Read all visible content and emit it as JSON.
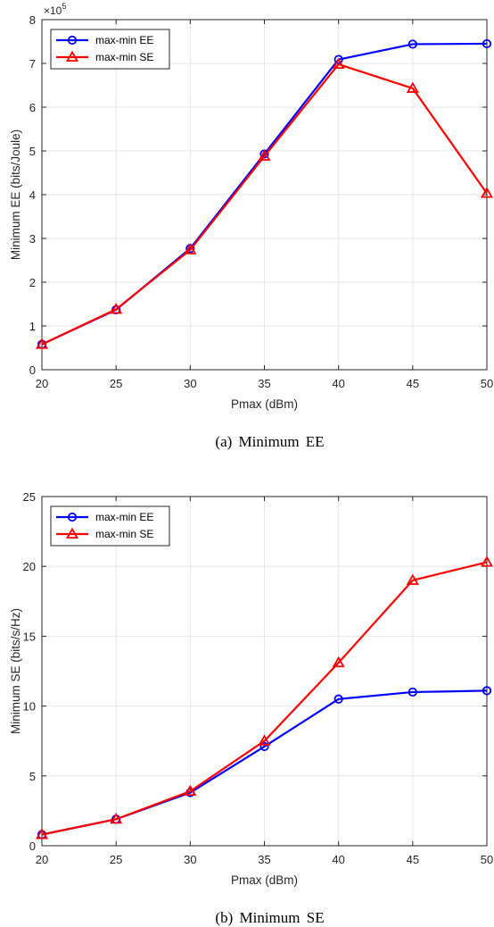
{
  "chart_data": [
    {
      "type": "line",
      "caption": "(a) Minimum EE",
      "xlabel": "Pmax (dBm)",
      "ylabel": "Minimum EE (bits/Joule)",
      "y_multiplier": {
        "base": "×10",
        "exp": "5"
      },
      "x": [
        20,
        25,
        30,
        35,
        40,
        45,
        50
      ],
      "xlim": [
        20,
        50
      ],
      "ylim": [
        0,
        8
      ],
      "xticks": [
        "20",
        "25",
        "30",
        "35",
        "40",
        "45",
        "50"
      ],
      "yticks": [
        "0",
        "1",
        "2",
        "3",
        "4",
        "5",
        "6",
        "7",
        "8"
      ],
      "grid": true,
      "legend_position": "top-left",
      "series": [
        {
          "name": "max-min EE",
          "color": "#0000ff",
          "marker": "circle",
          "values": [
            0.58,
            1.37,
            2.77,
            4.93,
            7.09,
            7.44,
            7.45
          ]
        },
        {
          "name": "max-min SE",
          "color": "#ff0000",
          "marker": "triangle",
          "values": [
            0.58,
            1.38,
            2.74,
            4.88,
            6.98,
            6.43,
            4.03
          ]
        }
      ]
    },
    {
      "type": "line",
      "caption": "(b) Minimum SE",
      "xlabel": "Pmax (dBm)",
      "ylabel": "Minimum SE (bits/s/Hz)",
      "x": [
        20,
        25,
        30,
        35,
        40,
        45,
        50
      ],
      "xlim": [
        20,
        50
      ],
      "ylim": [
        0,
        25
      ],
      "xticks": [
        "20",
        "25",
        "30",
        "35",
        "40",
        "45",
        "50"
      ],
      "yticks": [
        "0",
        "5",
        "10",
        "15",
        "20",
        "25"
      ],
      "grid": true,
      "legend_position": "top-left",
      "series": [
        {
          "name": "max-min EE",
          "color": "#0000ff",
          "marker": "circle",
          "values": [
            0.8,
            1.9,
            3.8,
            7.1,
            10.5,
            11.0,
            11.1
          ]
        },
        {
          "name": "max-min SE",
          "color": "#ff0000",
          "marker": "triangle",
          "values": [
            0.8,
            1.9,
            3.9,
            7.5,
            13.1,
            19.0,
            20.3
          ]
        }
      ]
    }
  ]
}
